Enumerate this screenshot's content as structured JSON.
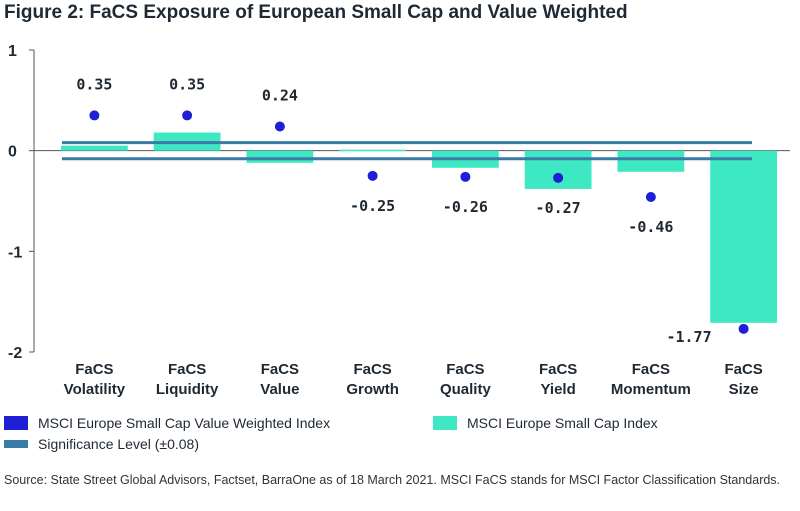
{
  "title": "Figure 2: FaCS Exposure of European Small Cap and Value Weighted",
  "chart_data": {
    "type": "bar",
    "categories": [
      [
        "FaCS",
        "Volatility"
      ],
      [
        "FaCS",
        "Liquidity"
      ],
      [
        "FaCS",
        "Value"
      ],
      [
        "FaCS",
        "Growth"
      ],
      [
        "FaCS",
        "Quality"
      ],
      [
        "FaCS",
        "Yield"
      ],
      [
        "FaCS",
        "Momentum"
      ],
      [
        "FaCS",
        "Size"
      ]
    ],
    "series": [
      {
        "name": "MSCI Europe Small Cap Index",
        "kind": "bar",
        "color": "#3de8c2",
        "values": [
          0.05,
          0.18,
          -0.12,
          0.01,
          -0.17,
          -0.38,
          -0.21,
          -1.71
        ]
      },
      {
        "name": "MSCI Europe Small Cap Value Weighted Index",
        "kind": "dot",
        "color": "#1f1fd6",
        "values": [
          0.35,
          0.35,
          0.24,
          -0.25,
          -0.26,
          -0.27,
          -0.46,
          -1.77
        ],
        "labels": [
          "0.35",
          "0.35",
          "0.24",
          "-0.25",
          "-0.26",
          "-0.27",
          "-0.46",
          "-1.77"
        ]
      }
    ],
    "significance": {
      "name": "Significance Level (±0.08)",
      "value": 0.08,
      "color": "#3a7ca5"
    },
    "yticks": [
      "1",
      "0",
      "-1",
      "-2"
    ],
    "ytick_values": [
      1,
      0,
      -1,
      -2
    ],
    "ylim": [
      -2,
      1
    ],
    "xlabel": "",
    "ylabel": ""
  },
  "legend": {
    "value_weighted": "MSCI Europe Small Cap Value Weighted Index",
    "small_cap": "MSCI Europe Small Cap Index",
    "significance": "Significance Level (±0.08)"
  },
  "source": "Source: State Street Global Advisors, Factset, BarraOne as of 18 March 2021. MSCI FaCS stands for MSCI Factor Classification Standards."
}
